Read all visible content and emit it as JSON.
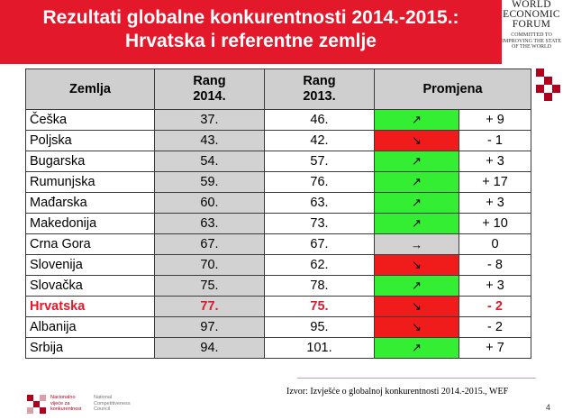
{
  "header": {
    "title_line1": "Rezultati globalne konkurentnosti 2014.-2015.:",
    "title_line2": "Hrvatska i referentne zemlje",
    "accent_color": "#e3182b"
  },
  "wef_logo": {
    "line1": "WORLD",
    "line2": "ECONOMIC",
    "line3": "FORUM",
    "tag1": "COMMITTED TO",
    "tag2": "IMPROVING THE STATE",
    "tag3": "OF THE WORLD"
  },
  "table": {
    "headers": {
      "country": "Zemlja",
      "rank2014_line1": "Rang",
      "rank2014_line2": "2014.",
      "rank2013_line1": "Rang",
      "rank2013_line2": "2013.",
      "change": "Promjena"
    },
    "rows": [
      {
        "country": "Češka",
        "rank2014": "37.",
        "rank2013": "46.",
        "trend": "up",
        "arrow": "↗",
        "change": "+ 9"
      },
      {
        "country": "Poljska",
        "rank2014": "43.",
        "rank2013": "42.",
        "trend": "down",
        "arrow": "↘",
        "change": "- 1"
      },
      {
        "country": "Bugarska",
        "rank2014": "54.",
        "rank2013": "57.",
        "trend": "up",
        "arrow": "↗",
        "change": "+ 3"
      },
      {
        "country": "Rumunjska",
        "rank2014": "59.",
        "rank2013": "76.",
        "trend": "up",
        "arrow": "↗",
        "change": "+ 17"
      },
      {
        "country": "Mađarska",
        "rank2014": "60.",
        "rank2013": "63.",
        "trend": "up",
        "arrow": "↗",
        "change": "+ 3"
      },
      {
        "country": "Makedonija",
        "rank2014": "63.",
        "rank2013": "73.",
        "trend": "up",
        "arrow": "↗",
        "change": "+ 10"
      },
      {
        "country": "Crna Gora",
        "rank2014": "67.",
        "rank2013": "67.",
        "trend": "same",
        "arrow": "→",
        "change": "0"
      },
      {
        "country": "Slovenija",
        "rank2014": "70.",
        "rank2013": "62.",
        "trend": "down",
        "arrow": "↘",
        "change": "- 8"
      },
      {
        "country": "Slovačka",
        "rank2014": "75.",
        "rank2013": "78.",
        "trend": "up",
        "arrow": "↗",
        "change": "+ 3"
      },
      {
        "country": "Hrvatska",
        "rank2014": "77.",
        "rank2013": "75.",
        "trend": "down",
        "arrow": "↘",
        "change": "- 2",
        "highlight": true
      },
      {
        "country": "Albanija",
        "rank2014": "97.",
        "rank2013": "95.",
        "trend": "down",
        "arrow": "↘",
        "change": "- 2"
      },
      {
        "country": "Srbija",
        "rank2014": "94.",
        "rank2013": "101.",
        "trend": "up",
        "arrow": "↗",
        "change": "+ 7"
      }
    ]
  },
  "footer": {
    "source": "Izvor: Izvješće o globalnoj konkurentnosti 2014.-2015., WEF",
    "page_number": "4",
    "nvk_line1": "Nacionalno",
    "nvk_line2": "vijeće za",
    "nvk_line3": "konkurentnost",
    "nvk_en1": "National",
    "nvk_en2": "Competitiveness",
    "nvk_en3": "Council"
  }
}
